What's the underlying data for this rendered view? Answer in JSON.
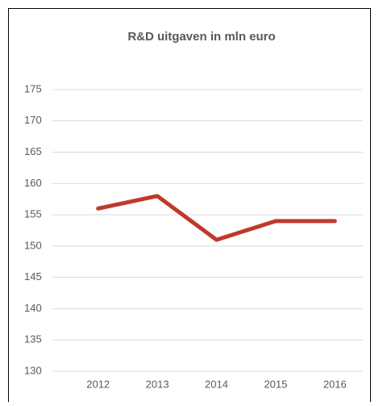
{
  "chart_data": {
    "type": "line",
    "title": "R&D uitgaven in mln euro",
    "categories": [
      "2012",
      "2013",
      "2014",
      "2015",
      "2016"
    ],
    "series": [
      {
        "name": "R&D uitgaven",
        "color": "#c0392b",
        "values": [
          156,
          158,
          151,
          154,
          154
        ]
      }
    ],
    "ylim": [
      130,
      175
    ],
    "yticks": [
      130,
      135,
      140,
      145,
      150,
      155,
      160,
      165,
      170,
      175
    ],
    "grid": true
  }
}
